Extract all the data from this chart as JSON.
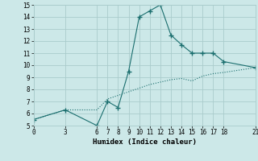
{
  "xlabel": "Humidex (Indice chaleur)",
  "bg_color": "#cce8e8",
  "grid_color": "#aacccc",
  "line_color": "#1a6e6e",
  "ylim": [
    5,
    15
  ],
  "xlim": [
    0,
    21
  ],
  "yticks": [
    5,
    6,
    7,
    8,
    9,
    10,
    11,
    12,
    13,
    14,
    15
  ],
  "xticks": [
    0,
    3,
    6,
    7,
    8,
    9,
    10,
    11,
    12,
    13,
    14,
    15,
    16,
    17,
    18,
    21
  ],
  "line1_x": [
    0,
    3,
    6,
    7,
    8,
    9,
    10,
    11,
    12,
    13,
    14,
    15,
    16,
    17,
    18,
    21
  ],
  "line1_y": [
    5.5,
    6.3,
    5.0,
    7.0,
    6.5,
    9.5,
    14.0,
    14.5,
    15.0,
    12.5,
    11.7,
    11.0,
    11.0,
    11.0,
    10.3,
    9.8
  ],
  "line2_x": [
    0,
    3,
    6,
    7,
    8,
    9,
    10,
    11,
    12,
    13,
    14,
    15,
    16,
    17,
    18,
    21
  ],
  "line2_y": [
    5.5,
    6.3,
    6.3,
    7.2,
    7.5,
    7.8,
    8.1,
    8.4,
    8.6,
    8.8,
    8.9,
    8.7,
    9.1,
    9.3,
    9.4,
    9.8
  ]
}
